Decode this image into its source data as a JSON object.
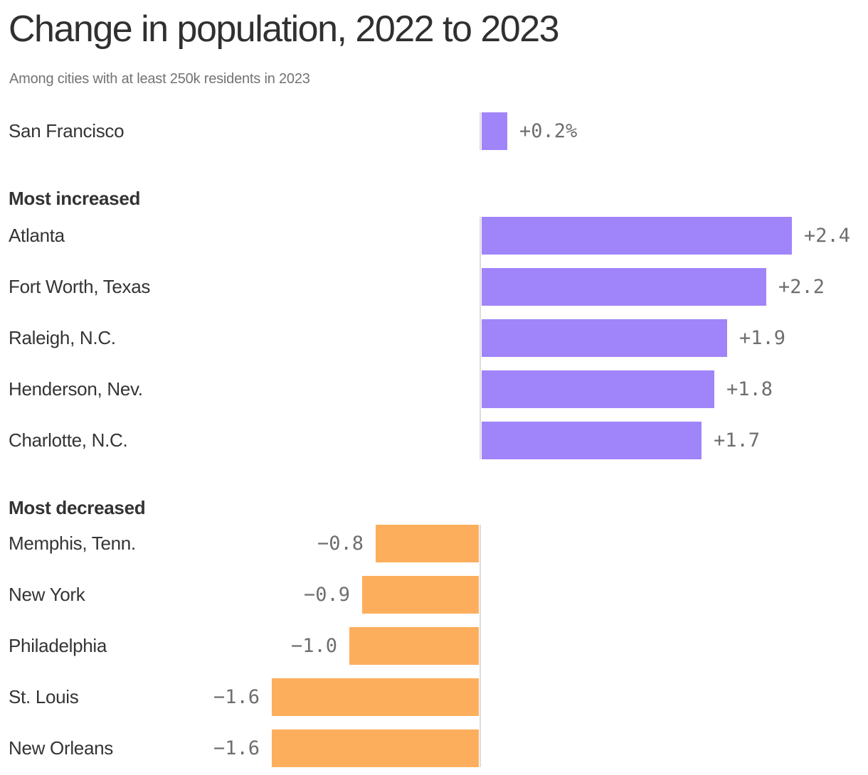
{
  "title": "Change in population, 2022 to 2023",
  "subtitle": "Among cities with at least 250k residents in 2023",
  "colors": {
    "positive_bar": "#a084fa",
    "negative_bar": "#fdae5c",
    "title_text": "#303030",
    "subtitle_text": "#737373",
    "label_text": "#343434",
    "value_text": "#6e6e6e",
    "baseline": "#dedcd7",
    "background": "#ffffff"
  },
  "chart_data": {
    "type": "bar",
    "orientation": "horizontal",
    "unit": "percent change",
    "value_axis": "hidden",
    "grid": false,
    "legend": false,
    "groups": [
      {
        "header": "",
        "rows": [
          {
            "label": "San Francisco",
            "value": 0.2,
            "value_label": "+0.2%"
          }
        ]
      },
      {
        "header": "Most increased",
        "rows": [
          {
            "label": "Atlanta",
            "value": 2.4,
            "value_label": "+2.4"
          },
          {
            "label": "Fort Worth, Texas",
            "value": 2.2,
            "value_label": "+2.2"
          },
          {
            "label": "Raleigh, N.C.",
            "value": 1.9,
            "value_label": "+1.9"
          },
          {
            "label": "Henderson, Nev.",
            "value": 1.8,
            "value_label": "+1.8"
          },
          {
            "label": "Charlotte, N.C.",
            "value": 1.7,
            "value_label": "+1.7"
          }
        ]
      },
      {
        "header": "Most decreased",
        "rows": [
          {
            "label": "Memphis, Tenn.",
            "value": -0.8,
            "value_label": "−0.8"
          },
          {
            "label": "New York",
            "value": -0.9,
            "value_label": "−0.9"
          },
          {
            "label": "Philadelphia",
            "value": -1.0,
            "value_label": "−1.0"
          },
          {
            "label": "St. Louis",
            "value": -1.6,
            "value_label": "−1.6"
          },
          {
            "label": "New Orleans",
            "value": -1.6,
            "value_label": "−1.6"
          }
        ]
      }
    ]
  }
}
